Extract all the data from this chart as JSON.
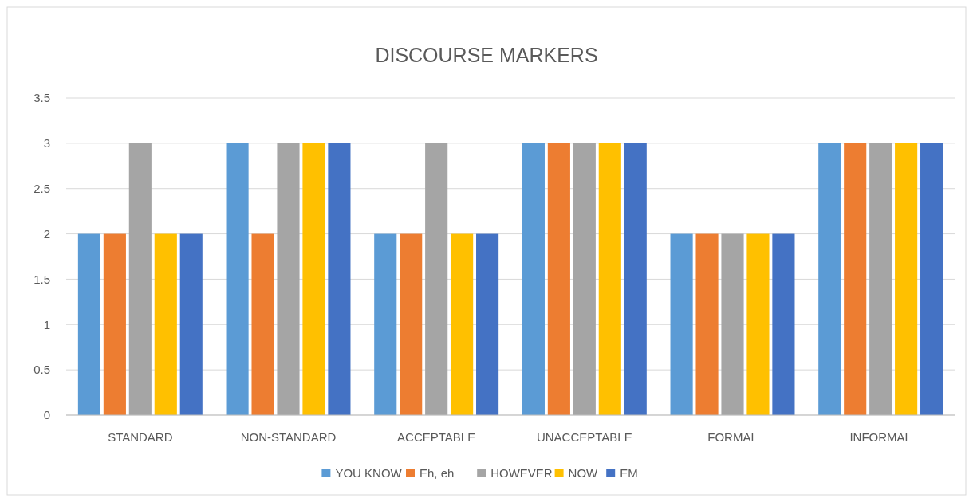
{
  "chart_data": {
    "type": "bar",
    "title": "DISCOURSE MARKERS",
    "categories": [
      "STANDARD",
      "NON-STANDARD",
      "ACCEPTABLE",
      "UNACCEPTABLE",
      "FORMAL",
      "INFORMAL"
    ],
    "series": [
      {
        "name": "YOU KNOW",
        "color": "#5b9bd5",
        "values": [
          2,
          3,
          2,
          3,
          2,
          3
        ]
      },
      {
        "name": "Eh, eh",
        "color": "#ed7d31",
        "values": [
          2,
          2,
          2,
          3,
          2,
          3
        ]
      },
      {
        "name": "HOWEVER",
        "color": "#a5a5a5",
        "values": [
          3,
          3,
          3,
          3,
          2,
          3
        ]
      },
      {
        "name": "NOW",
        "color": "#ffc000",
        "values": [
          2,
          3,
          2,
          3,
          2,
          3
        ]
      },
      {
        "name": "EM",
        "color": "#4472c4",
        "values": [
          2,
          3,
          2,
          3,
          2,
          3
        ]
      }
    ],
    "ylim": [
      0,
      3.5
    ],
    "yticks": [
      0,
      0.5,
      1,
      1.5,
      2,
      2.5,
      3,
      3.5
    ],
    "grid": "y",
    "legend": "bottom"
  }
}
